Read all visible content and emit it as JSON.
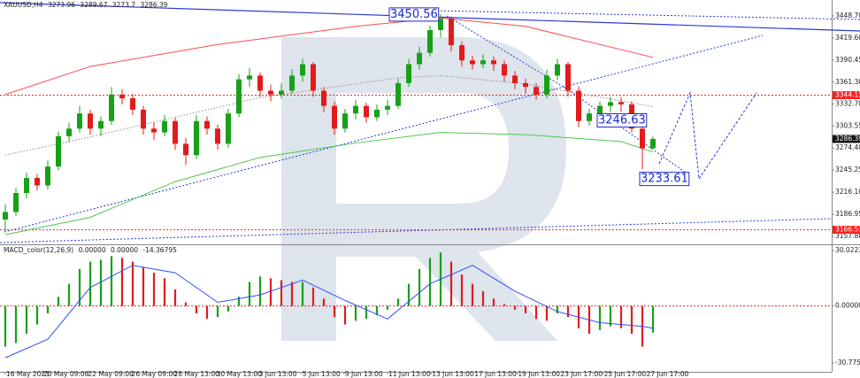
{
  "chart_data": [
    {
      "type": "candlestick",
      "title": "XAUUSD,H4",
      "up_color": "#17a117",
      "down_color": "#e31b1b",
      "ohlc": [
        [
          3180,
          3200,
          3165,
          3190
        ],
        [
          3190,
          3222,
          3185,
          3215
        ],
        [
          3215,
          3242,
          3208,
          3235
        ],
        [
          3235,
          3240,
          3218,
          3225
        ],
        [
          3225,
          3258,
          3220,
          3250
        ],
        [
          3250,
          3296,
          3245,
          3290
        ],
        [
          3290,
          3308,
          3282,
          3300
        ],
        [
          3300,
          3330,
          3295,
          3320
        ],
        [
          3320,
          3325,
          3292,
          3300
        ],
        [
          3300,
          3316,
          3290,
          3310
        ],
        [
          3310,
          3355,
          3305,
          3345
        ],
        [
          3345,
          3352,
          3332,
          3340
        ],
        [
          3340,
          3346,
          3318,
          3325
        ],
        [
          3325,
          3330,
          3292,
          3300
        ],
        [
          3300,
          3308,
          3285,
          3295
        ],
        [
          3295,
          3318,
          3290,
          3310
        ],
        [
          3310,
          3314,
          3272,
          3280
        ],
        [
          3280,
          3288,
          3252,
          3265
        ],
        [
          3265,
          3318,
          3260,
          3310
        ],
        [
          3310,
          3316,
          3292,
          3300
        ],
        [
          3300,
          3305,
          3272,
          3280
        ],
        [
          3280,
          3326,
          3275,
          3320
        ],
        [
          3320,
          3372,
          3315,
          3365
        ],
        [
          3365,
          3380,
          3355,
          3370
        ],
        [
          3370,
          3374,
          3342,
          3350
        ],
        [
          3350,
          3358,
          3336,
          3345
        ],
        [
          3345,
          3360,
          3340,
          3350
        ],
        [
          3350,
          3378,
          3346,
          3370
        ],
        [
          3370,
          3392,
          3362,
          3385
        ],
        [
          3385,
          3388,
          3342,
          3350
        ],
        [
          3350,
          3355,
          3322,
          3330
        ],
        [
          3330,
          3336,
          3292,
          3300
        ],
        [
          3300,
          3326,
          3295,
          3320
        ],
        [
          3320,
          3338,
          3312,
          3330
        ],
        [
          3330,
          3334,
          3308,
          3315
        ],
        [
          3315,
          3332,
          3310,
          3325
        ],
        [
          3325,
          3338,
          3318,
          3330
        ],
        [
          3330,
          3366,
          3326,
          3360
        ],
        [
          3360,
          3392,
          3355,
          3385
        ],
        [
          3385,
          3408,
          3378,
          3400
        ],
        [
          3400,
          3436,
          3395,
          3430
        ],
        [
          3430,
          3450.56,
          3420,
          3445
        ],
        [
          3445,
          3448,
          3402,
          3410
        ],
        [
          3410,
          3415,
          3382,
          3390
        ],
        [
          3390,
          3396,
          3378,
          3385
        ],
        [
          3385,
          3398,
          3380,
          3390
        ],
        [
          3390,
          3395,
          3376,
          3385
        ],
        [
          3385,
          3390,
          3362,
          3370
        ],
        [
          3370,
          3376,
          3352,
          3360
        ],
        [
          3360,
          3366,
          3346,
          3355
        ],
        [
          3355,
          3360,
          3338,
          3345
        ],
        [
          3345,
          3378,
          3340,
          3370
        ],
        [
          3370,
          3392,
          3364,
          3385
        ],
        [
          3385,
          3388,
          3342,
          3350
        ],
        [
          3350,
          3356,
          3302,
          3310
        ],
        [
          3310,
          3326,
          3304,
          3320
        ],
        [
          3320,
          3336,
          3314,
          3330
        ],
        [
          3330,
          3342,
          3322,
          3335
        ],
        [
          3335,
          3342,
          3322,
          3332
        ],
        [
          3332,
          3336,
          3295,
          3300
        ],
        [
          3300,
          3304,
          3246.63,
          3273.96
        ],
        [
          3273.96,
          3289.67,
          3273.7,
          3286.39
        ]
      ],
      "series": [
        {
          "color": "#ff4a4a",
          "style": "solid",
          "x": [
            0,
            8,
            20,
            33,
            41,
            49,
            61
          ],
          "values": [
            3345,
            3382,
            3411,
            3435,
            3446,
            3435,
            3394
          ]
        },
        {
          "color": "#4cc84c",
          "style": "solid",
          "x": [
            0,
            8,
            16,
            24,
            33,
            41,
            49,
            58,
            61
          ],
          "values": [
            3160,
            3183,
            3230,
            3262,
            3281,
            3295,
            3292,
            3283,
            3269
          ]
        },
        {
          "color": "#8f8f8f",
          "style": "dotted",
          "x": [
            0,
            8,
            24,
            37,
            41,
            49,
            61
          ],
          "values": [
            3265,
            3289,
            3341,
            3367,
            3370,
            3359,
            3329
          ]
        }
      ],
      "levels": [
        {
          "value": 3344.15,
          "color": "#ff2020"
        },
        {
          "value": 3166.53,
          "color": "#ff2020"
        }
      ],
      "annotations": [
        {
          "value": 3233.61
        }
      ],
      "ylim": [
        3148.5,
        3469.7
      ],
      "yticks": [
        {
          "value": 3448.7,
          "label": "3448.70"
        },
        {
          "value": 3419.6,
          "label": "3419.60"
        },
        3390.45,
        {
          "value": 3361.3,
          "label": "3361.30"
        },
        {
          "value": 3332.7,
          "label": "3332.70"
        },
        3303.55,
        {
          "value": 3274.4,
          "label": "3274.40"
        },
        3245.25,
        {
          "value": 3216.1,
          "label": "3216.10"
        },
        3186.95,
        {
          "value": 3157.8,
          "label": "3157.80"
        }
      ],
      "xticks": [
        {
          "value": 0,
          "label": "16 May 2025"
        },
        {
          "value": 3.5,
          "label": "20 May 09:00"
        },
        {
          "value": 7.7,
          "label": "22 May 09:00"
        },
        {
          "value": 11.8,
          "label": "26 May 09:00"
        },
        {
          "value": 15.8,
          "label": "28 May 13:00"
        },
        {
          "value": 19.8,
          "label": "30 May 13:00"
        },
        {
          "value": 23.8,
          "label": "3 Jun 13:00"
        },
        {
          "value": 27.9,
          "label": "5 Jun 13:00"
        },
        {
          "value": 31.9,
          "label": "9 Jun 13:00"
        },
        {
          "value": 36,
          "label": "11 Jun 13:00"
        },
        {
          "value": 40.1,
          "label": "13 Jun 13:00"
        },
        {
          "value": 44.1,
          "label": "17 Jun 13:00"
        },
        {
          "value": 48.2,
          "label": "19 Jun 13:00"
        },
        {
          "value": 52.2,
          "label": "23 Jun 17:00"
        },
        {
          "value": 56.3,
          "label": "25 Jun 17:00"
        },
        {
          "value": 60.3,
          "label": "27 Jun 17:00"
        }
      ]
    },
    {
      "type": "bar",
      "title": "MACD_color(12,26,9)",
      "params": [
        "0.00000",
        "0.00000"
      ],
      "up_color": "#17a117",
      "down_color": "#e31b1b",
      "zero_line_color": "#ff2020",
      "values": [
        -22,
        -20,
        -15,
        -10,
        -4,
        5,
        12,
        20,
        24,
        25,
        27,
        26,
        24,
        21,
        18,
        15,
        9,
        2,
        -4,
        -7,
        -6,
        -3,
        5,
        13,
        16,
        15,
        14,
        13,
        13,
        10,
        4,
        -6,
        -10,
        -8,
        -7,
        -5,
        -2,
        4,
        12,
        20,
        26,
        29,
        24,
        17,
        12,
        8,
        4,
        1,
        -2,
        -4,
        -7,
        -8,
        -4,
        -6,
        -12,
        -15,
        -13,
        -11,
        -12,
        -15,
        -22,
        -14.36795
      ],
      "signal": {
        "color": "#3050ff",
        "x": [
          0,
          4,
          8,
          12,
          16,
          20,
          24,
          28,
          32,
          36,
          40,
          44,
          48,
          52,
          56,
          60,
          61
        ],
        "values": [
          -28,
          -18,
          10,
          22,
          18,
          2,
          6,
          14,
          3,
          -7,
          12,
          22,
          8,
          -3,
          -9,
          -11,
          -12
        ]
      },
      "ylim": [
        -35.6,
        32.4
      ],
      "yticks": [
        30.02237,
        {
          "value": 0,
          "label": "0.00000"
        },
        -30.77562
      ]
    }
  ]
}
